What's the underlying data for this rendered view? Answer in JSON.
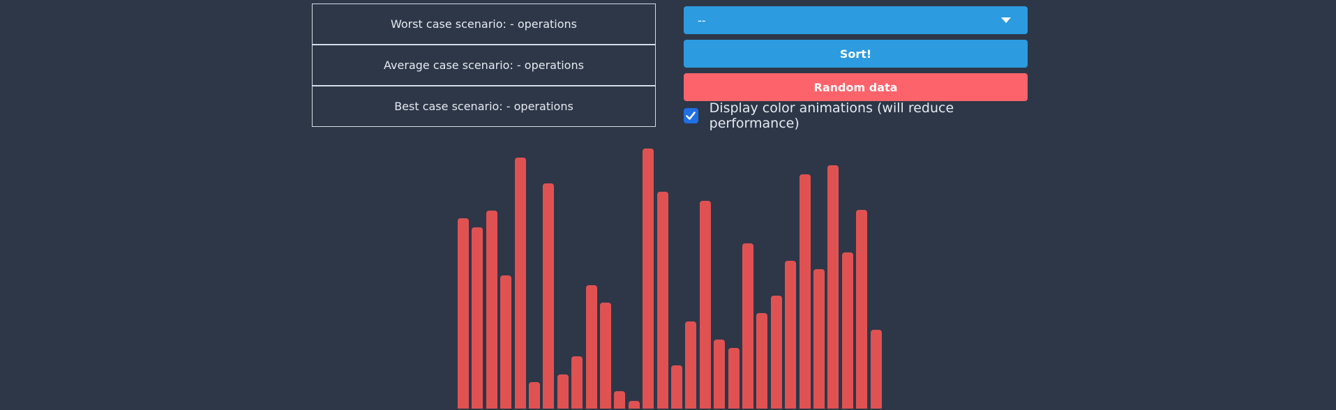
{
  "stats": {
    "worst": "Worst case scenario: - operations",
    "average": "Average case scenario: - operations",
    "best": "Best case scenario: - operations"
  },
  "controls": {
    "algorithm_select_value": "--",
    "sort_label": "Sort!",
    "random_label": "Random data",
    "color_animations_label": "Display color animations (will reduce performance)",
    "color_animations_checked": true
  },
  "colors": {
    "background": "#2d3748",
    "primary": "#2d9be0",
    "danger": "#fc636b",
    "bar": "#e05252"
  },
  "chart_data": {
    "type": "bar",
    "values": [
      0.712,
      0.678,
      0.742,
      0.499,
      0.939,
      0.098,
      0.843,
      0.128,
      0.195,
      0.461,
      0.397,
      0.064,
      0.028,
      0.974,
      0.811,
      0.162,
      0.327,
      0.778,
      0.259,
      0.226,
      0.618,
      0.357,
      0.424,
      0.554,
      0.876,
      0.521,
      0.912,
      0.586,
      0.745,
      0.294
    ]
  }
}
